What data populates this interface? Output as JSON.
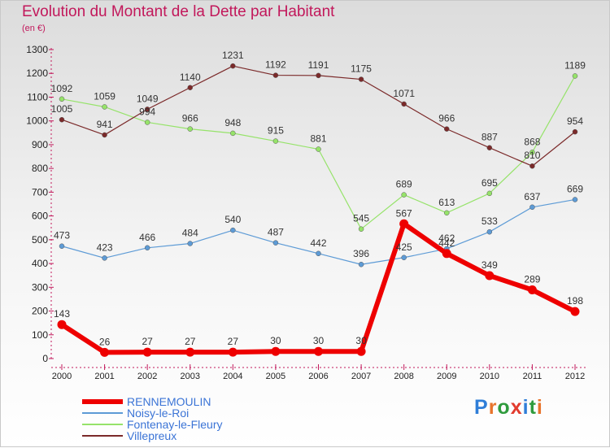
{
  "title": "Evolution du Montant de la Dette par Habitant",
  "unit": "(en €)",
  "logo": {
    "letters": [
      "P",
      "r",
      "o",
      "x",
      "i",
      "t",
      "i"
    ],
    "colors": [
      "#2f7ed8",
      "#e8742c",
      "#2f9b3d",
      "#e23b2e",
      "#2f7ed8",
      "#2f9b3d",
      "#e8742c"
    ]
  },
  "chart_data": {
    "type": "line",
    "title": "Evolution du Montant de la Dette par Habitant",
    "ylabel": "(en €)",
    "xlabel": "",
    "x": [
      "2000",
      "2001",
      "2002",
      "2003",
      "2004",
      "2005",
      "2006",
      "2007",
      "2008",
      "2009",
      "2010",
      "2011",
      "2012"
    ],
    "ylim": [
      0,
      1300
    ],
    "ytick_step": 100,
    "grid": false,
    "legend": "bottom-left",
    "series": [
      {
        "name": "RENNEMOULIN",
        "color": "#ee0000",
        "width": 6,
        "values": [
          143,
          26,
          27,
          27,
          27,
          30,
          30,
          30,
          567,
          442,
          349,
          289,
          198
        ]
      },
      {
        "name": "Noisy-le-Roi",
        "color": "#5d9bd6",
        "width": 1.2,
        "values": [
          473,
          423,
          466,
          484,
          540,
          487,
          442,
          396,
          425,
          462,
          533,
          637,
          669
        ]
      },
      {
        "name": "Fontenay-le-Fleury",
        "color": "#96e36a",
        "width": 1.2,
        "values": [
          1092,
          1059,
          994,
          966,
          948,
          915,
          881,
          545,
          689,
          613,
          695,
          868,
          1189
        ]
      },
      {
        "name": "Villepreux",
        "color": "#7b2a2a",
        "width": 1.2,
        "values": [
          1005,
          941,
          1049,
          1140,
          1231,
          1192,
          1191,
          1175,
          1071,
          966,
          887,
          810,
          954
        ]
      }
    ]
  }
}
